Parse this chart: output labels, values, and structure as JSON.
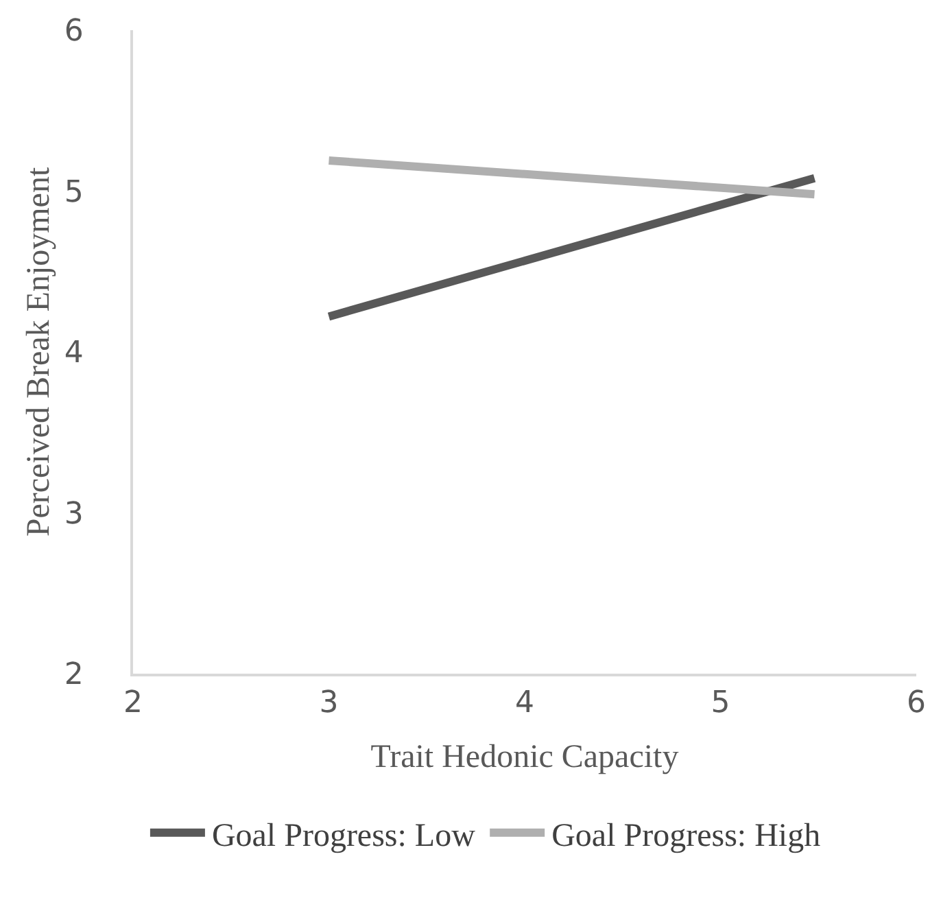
{
  "chart_data": {
    "type": "line",
    "xlabel": "Trait Hedonic Capacity",
    "ylabel": "Perceived Break Enjoyment",
    "x": [
      3,
      5.48
    ],
    "series": [
      {
        "name": "Goal Progress: Low",
        "color": "#595959",
        "values": [
          4.22,
          5.08
        ]
      },
      {
        "name": "Goal Progress: High",
        "color": "#afafaf",
        "values": [
          5.19,
          4.98
        ]
      }
    ],
    "xlim": [
      2,
      6
    ],
    "xticks": [
      2,
      3,
      4,
      5,
      6
    ],
    "ylim": [
      2,
      6
    ],
    "yticks": [
      2,
      3,
      4,
      5,
      6
    ],
    "grid": false,
    "legend": "bottom",
    "marker": "none",
    "line_style": "solid"
  }
}
